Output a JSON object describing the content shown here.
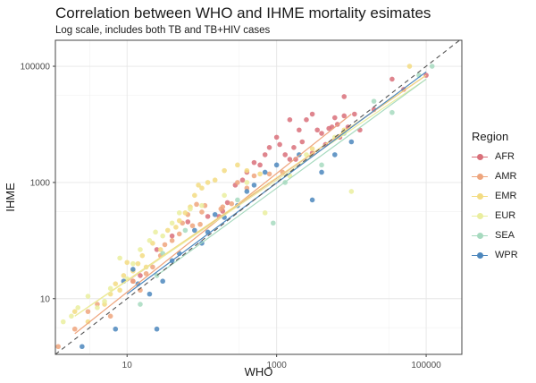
{
  "title": "Correlation between WHO and IHME mortality esimates",
  "subtitle": "Log scale, includes both TB and TB+HIV cases",
  "chart_data": {
    "type": "scatter",
    "title": "Correlation between WHO and IHME mortality esimates",
    "subtitle": "Log scale, includes both TB and TB+HIV cases",
    "xlabel": "WHO",
    "ylabel": "IHME",
    "x_scale": "log10",
    "y_scale": "log10",
    "xlim": [
      1.1,
      300000
    ],
    "ylim": [
      1.1,
      280000
    ],
    "x_ticks": [
      10,
      1000,
      100000
    ],
    "y_ticks": [
      10,
      1000,
      100000
    ],
    "x_tick_labels": [
      "10",
      "1000",
      "100000"
    ],
    "y_tick_labels": [
      "10",
      "1000",
      "100000"
    ],
    "grid": true,
    "legend_position": "right",
    "legend_title": "Region",
    "identity_line": {
      "style": "dashed",
      "color": "#555555"
    },
    "series": [
      {
        "name": "AFR",
        "color": "#d9707a",
        "fit": [
          [
            10,
            20
          ],
          [
            100000,
            70000
          ]
        ],
        "points": [
          [
            65,
            210
          ],
          [
            120,
            260
          ],
          [
            170,
            260
          ],
          [
            190,
            320
          ],
          [
            220,
            450
          ],
          [
            280,
            900
          ],
          [
            350,
            1100
          ],
          [
            400,
            1500
          ],
          [
            500,
            2200
          ],
          [
            600,
            2000
          ],
          [
            700,
            3000
          ],
          [
            800,
            4000
          ],
          [
            1000,
            6000
          ],
          [
            1100,
            4500
          ],
          [
            1300,
            3000
          ],
          [
            1500,
            2500
          ],
          [
            1700,
            4000
          ],
          [
            1800,
            2500
          ],
          [
            2000,
            8000
          ],
          [
            2200,
            5000
          ],
          [
            2500,
            12000
          ],
          [
            3000,
            3200
          ],
          [
            3500,
            8000
          ],
          [
            4000,
            7000
          ],
          [
            4500,
            4500
          ],
          [
            5000,
            8500
          ],
          [
            5500,
            9000
          ],
          [
            6000,
            13000
          ],
          [
            6500,
            10000
          ],
          [
            7000,
            6000
          ],
          [
            8000,
            14000
          ],
          [
            9000,
            9000
          ],
          [
            11000,
            15000
          ],
          [
            13000,
            8000
          ],
          [
            20000,
            18000
          ],
          [
            35000,
            60000
          ],
          [
            50000,
            40000
          ],
          [
            100000,
            70000
          ],
          [
            12,
            20
          ],
          [
            15,
            25
          ],
          [
            25,
            70
          ],
          [
            40,
            120
          ],
          [
            1500,
            12000
          ],
          [
            3000,
            15000
          ],
          [
            8000,
            30000
          ]
        ]
      },
      {
        "name": "AMR",
        "color": "#eea57d",
        "fit": [
          [
            2,
            2.5
          ],
          [
            10000,
            15000
          ]
        ],
        "points": [
          [
            1.2,
            1.5
          ],
          [
            2,
            3
          ],
          [
            3,
            6
          ],
          [
            4,
            8
          ],
          [
            6,
            5
          ],
          [
            12,
            20
          ],
          [
            15,
            14
          ],
          [
            18,
            27
          ],
          [
            22,
            35
          ],
          [
            28,
            55
          ],
          [
            32,
            85
          ],
          [
            40,
            100
          ],
          [
            50,
            130
          ],
          [
            55,
            200
          ],
          [
            65,
            280
          ],
          [
            75,
            180
          ],
          [
            85,
            420
          ],
          [
            95,
            190
          ],
          [
            100,
            310
          ],
          [
            110,
            400
          ],
          [
            180,
            350
          ],
          [
            190,
            380
          ],
          [
            250,
            430
          ],
          [
            300,
            1000
          ],
          [
            400,
            800
          ],
          [
            500,
            1300
          ],
          [
            800,
            1400
          ],
          [
            1200,
            1500
          ]
        ]
      },
      {
        "name": "EMR",
        "color": "#f3dc83",
        "fit": [
          [
            2,
            5
          ],
          [
            100000,
            70000
          ]
        ],
        "points": [
          [
            2,
            6
          ],
          [
            3,
            4
          ],
          [
            5,
            8
          ],
          [
            6,
            12
          ],
          [
            7,
            18
          ],
          [
            8,
            14
          ],
          [
            9,
            25
          ],
          [
            10,
            42
          ],
          [
            12,
            30
          ],
          [
            14,
            40
          ],
          [
            16,
            55
          ],
          [
            18,
            35
          ],
          [
            22,
            90
          ],
          [
            28,
            70
          ],
          [
            35,
            150
          ],
          [
            45,
            170
          ],
          [
            50,
            220
          ],
          [
            60,
            300
          ],
          [
            70,
            380
          ],
          [
            80,
            600
          ],
          [
            90,
            900
          ],
          [
            100,
            800
          ],
          [
            120,
            1000
          ],
          [
            150,
            1100
          ],
          [
            200,
            1600
          ],
          [
            300,
            2000
          ],
          [
            400,
            1600
          ],
          [
            600,
            1400
          ],
          [
            3000,
            3800
          ],
          [
            8000,
            8000
          ],
          [
            60000,
            100000
          ]
        ]
      },
      {
        "name": "EUR",
        "color": "#eaee9f",
        "fit": [
          [
            2,
            5
          ],
          [
            100000,
            60000
          ]
        ],
        "points": [
          [
            1.4,
            4
          ],
          [
            1.8,
            5
          ],
          [
            2.2,
            7
          ],
          [
            3,
            11
          ],
          [
            4,
            7
          ],
          [
            5,
            9
          ],
          [
            6,
            15
          ],
          [
            8,
            50
          ],
          [
            10,
            22
          ],
          [
            12,
            40
          ],
          [
            15,
            70
          ],
          [
            20,
            100
          ],
          [
            24,
            140
          ],
          [
            30,
            120
          ],
          [
            40,
            200
          ],
          [
            50,
            300
          ],
          [
            70,
            350
          ],
          [
            100,
            400
          ],
          [
            200,
            600
          ],
          [
            400,
            1000
          ],
          [
            700,
            300
          ],
          [
            1500,
            1300
          ],
          [
            2500,
            3000
          ],
          [
            6000,
            6000
          ],
          [
            10000,
            700
          ]
        ]
      },
      {
        "name": "SEA",
        "color": "#a7dabf",
        "fit": [
          [
            25,
            25
          ],
          [
            100000,
            60000
          ]
        ],
        "points": [
          [
            15,
            8
          ],
          [
            25,
            25
          ],
          [
            30,
            60
          ],
          [
            60,
            150
          ],
          [
            300,
            500
          ],
          [
            900,
            200
          ],
          [
            1300,
            1000
          ],
          [
            4000,
            2000
          ],
          [
            8000,
            7000
          ],
          [
            20000,
            25000
          ],
          [
            35000,
            16000
          ],
          [
            80000,
            70000
          ],
          [
            120000,
            100000
          ]
        ]
      },
      {
        "name": "WPR",
        "color": "#4c87bd",
        "fit": [
          [
            10,
            12
          ],
          [
            100000,
            80000
          ]
        ],
        "points": [
          [
            2.5,
            1.5
          ],
          [
            7,
            3
          ],
          [
            9,
            20
          ],
          [
            12,
            32
          ],
          [
            14,
            18
          ],
          [
            20,
            12
          ],
          [
            25,
            3
          ],
          [
            30,
            20
          ],
          [
            40,
            45
          ],
          [
            50,
            60
          ],
          [
            80,
            150
          ],
          [
            100,
            90
          ],
          [
            120,
            140
          ],
          [
            150,
            280
          ],
          [
            200,
            250
          ],
          [
            300,
            400
          ],
          [
            400,
            700
          ],
          [
            500,
            900
          ],
          [
            700,
            1500
          ],
          [
            1000,
            2000
          ],
          [
            2000,
            3000
          ],
          [
            3000,
            500
          ],
          [
            4000,
            1500
          ],
          [
            6000,
            3000
          ],
          [
            10000,
            5000
          ]
        ]
      }
    ]
  }
}
